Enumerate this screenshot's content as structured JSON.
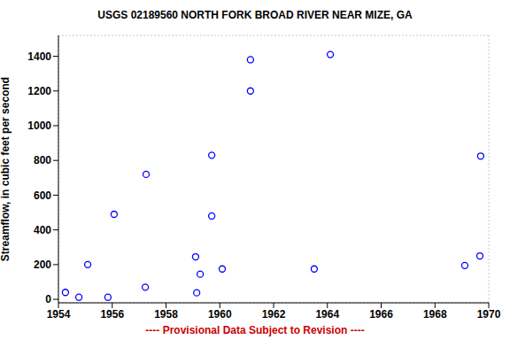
{
  "chart_data": {
    "type": "scatter",
    "title": "USGS 02189560 NORTH FORK BROAD RIVER NEAR MIZE, GA",
    "y_label": "Streamflow, in cubic feet per second",
    "annotation": "---- Provisional Data Subject to Revision ----",
    "x": [
      1954.26,
      1954.76,
      1955.09,
      1955.84,
      1956.07,
      1957.23,
      1957.26,
      1959.1,
      1959.14,
      1959.27,
      1959.7,
      1959.7,
      1960.09,
      1961.14,
      1961.14,
      1963.51,
      1964.11,
      1969.11,
      1969.67,
      1969.7
    ],
    "values": [
      40,
      12,
      200,
      12,
      490,
      70,
      720,
      245,
      38,
      145,
      830,
      480,
      175,
      1380,
      1200,
      175,
      1410,
      195,
      250,
      825
    ],
    "color": "#0000ff",
    "marker": "circle",
    "xlim": [
      1954,
      1970
    ],
    "xticks": [
      1954,
      1956,
      1958,
      1960,
      1962,
      1964,
      1966,
      1968,
      1970
    ],
    "ylim": [
      -20,
      1520
    ],
    "yticks": [
      0,
      200,
      400,
      600,
      800,
      1000,
      1200,
      1400
    ],
    "grid": true
  }
}
